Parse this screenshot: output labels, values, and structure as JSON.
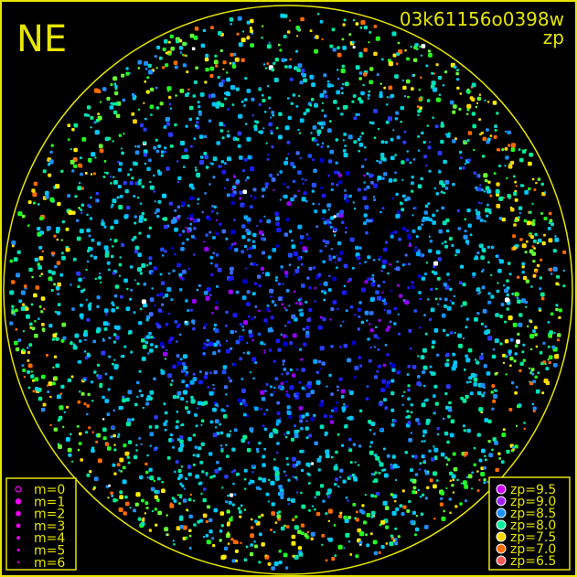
{
  "chart_data": {
    "type": "scatter",
    "title": "03k61156o0398w",
    "subtitle": "zp",
    "corner_label": "NE",
    "frame_color": "#e6e600",
    "size_legend": {
      "placement": "bottom-left",
      "entries": [
        {
          "label": "m=0",
          "marker": "open-circle"
        },
        {
          "label": "m=1",
          "marker": "filled-circle"
        },
        {
          "label": "m=2",
          "marker": "filled-circle"
        },
        {
          "label": "m=3",
          "marker": "filled-circle"
        },
        {
          "label": "m=4",
          "marker": "filled-circle"
        },
        {
          "label": "m=5",
          "marker": "filled-circle"
        },
        {
          "label": "m=6",
          "marker": "filled-circle"
        }
      ],
      "color": "#ff00ff"
    },
    "color_legend": {
      "placement": "bottom-right",
      "entries": [
        {
          "label": "zp=9.5",
          "color": "#cc00ff"
        },
        {
          "label": "zp=9.0",
          "color": "#a020f0"
        },
        {
          "label": "zp=8.5",
          "color": "#1e90ff"
        },
        {
          "label": "zp=8.0",
          "color": "#00ee99"
        },
        {
          "label": "zp=7.5",
          "color": "#ffd700"
        },
        {
          "label": "zp=7.0",
          "color": "#ff6a00"
        },
        {
          "label": "zp=6.5",
          "color": "#ff5a5a"
        }
      ]
    }
  }
}
